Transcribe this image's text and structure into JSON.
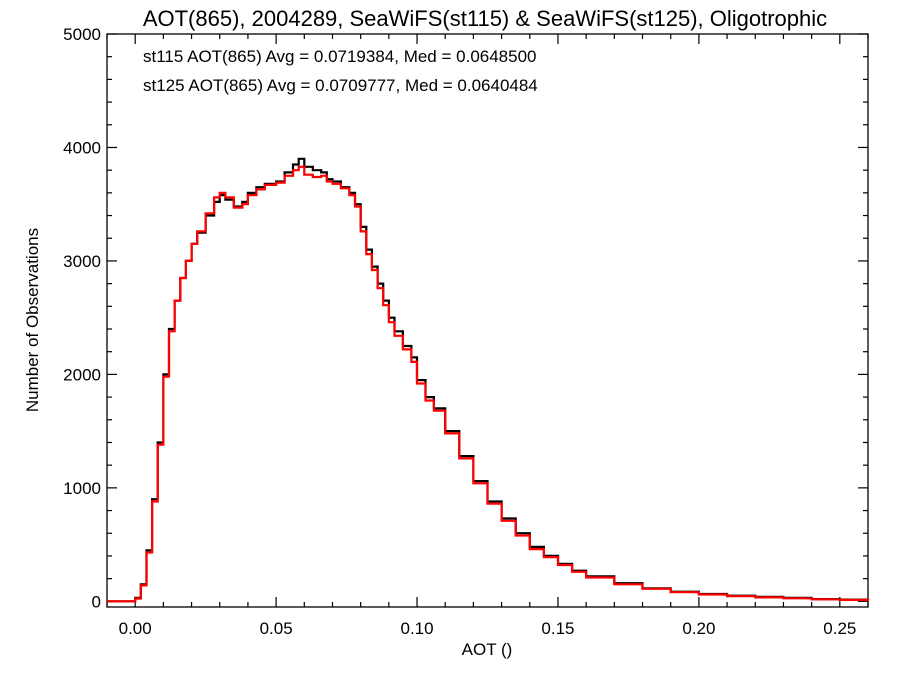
{
  "chart_data": {
    "type": "line",
    "title": "AOT(865), 2004289, SeaWiFS(st115) & SeaWiFS(st125), Oligotrophic",
    "xlabel": "AOT ()",
    "ylabel": "Number of Observations",
    "xlim": [
      -0.01,
      0.26
    ],
    "ylim": [
      -50,
      5000
    ],
    "xticks": [
      0.0,
      0.05,
      0.1,
      0.15,
      0.2,
      0.25
    ],
    "xtick_labels": [
      "0.00",
      "0.05",
      "0.10",
      "0.15",
      "0.20",
      "0.25"
    ],
    "yticks": [
      0,
      1000,
      2000,
      3000,
      4000,
      5000
    ],
    "ytick_labels": [
      "0",
      "1000",
      "2000",
      "3000",
      "4000",
      "5000"
    ],
    "grid": false,
    "legend_position": "top-left",
    "step": "histogram",
    "x": [
      -0.01,
      -0.001,
      0.0,
      0.002,
      0.004,
      0.006,
      0.008,
      0.01,
      0.012,
      0.014,
      0.016,
      0.018,
      0.02,
      0.022,
      0.025,
      0.028,
      0.03,
      0.032,
      0.035,
      0.038,
      0.04,
      0.043,
      0.046,
      0.05,
      0.053,
      0.056,
      0.058,
      0.06,
      0.063,
      0.066,
      0.068,
      0.07,
      0.073,
      0.076,
      0.078,
      0.08,
      0.082,
      0.084,
      0.086,
      0.088,
      0.09,
      0.092,
      0.095,
      0.098,
      0.1,
      0.103,
      0.106,
      0.11,
      0.115,
      0.12,
      0.125,
      0.13,
      0.135,
      0.14,
      0.145,
      0.15,
      0.155,
      0.16,
      0.17,
      0.18,
      0.19,
      0.2,
      0.21,
      0.22,
      0.23,
      0.24,
      0.25,
      0.26
    ],
    "series": [
      {
        "name": "st115",
        "color": "#000000",
        "values": [
          0,
          0,
          30,
          150,
          450,
          900,
          1400,
          2000,
          2400,
          2650,
          2850,
          3000,
          3150,
          3250,
          3400,
          3520,
          3580,
          3540,
          3480,
          3520,
          3600,
          3650,
          3680,
          3700,
          3780,
          3850,
          3900,
          3830,
          3800,
          3780,
          3720,
          3700,
          3650,
          3600,
          3500,
          3300,
          3100,
          2950,
          2800,
          2650,
          2500,
          2380,
          2250,
          2150,
          1950,
          1800,
          1700,
          1500,
          1280,
          1060,
          880,
          730,
          600,
          480,
          400,
          330,
          270,
          220,
          160,
          115,
          85,
          65,
          50,
          40,
          30,
          20,
          15,
          10
        ]
      },
      {
        "name": "st125",
        "color": "#ff0000",
        "values": [
          0,
          0,
          25,
          140,
          430,
          880,
          1380,
          1980,
          2380,
          2650,
          2850,
          3000,
          3150,
          3260,
          3420,
          3560,
          3600,
          3560,
          3470,
          3500,
          3580,
          3630,
          3670,
          3690,
          3750,
          3800,
          3830,
          3760,
          3740,
          3750,
          3700,
          3680,
          3640,
          3580,
          3480,
          3260,
          3060,
          2920,
          2760,
          2610,
          2460,
          2340,
          2220,
          2110,
          1920,
          1770,
          1680,
          1480,
          1260,
          1040,
          860,
          710,
          580,
          460,
          390,
          320,
          260,
          210,
          150,
          110,
          80,
          60,
          45,
          35,
          27,
          18,
          13,
          8
        ]
      }
    ],
    "annotations": [
      {
        "text": "st115 AOT(865) Avg = 0.0719384, Med = 0.0648500",
        "color": "#000000"
      },
      {
        "text": "st125 AOT(865) Avg = 0.0709777, Med = 0.0640484",
        "color": "#ff0000"
      }
    ]
  }
}
